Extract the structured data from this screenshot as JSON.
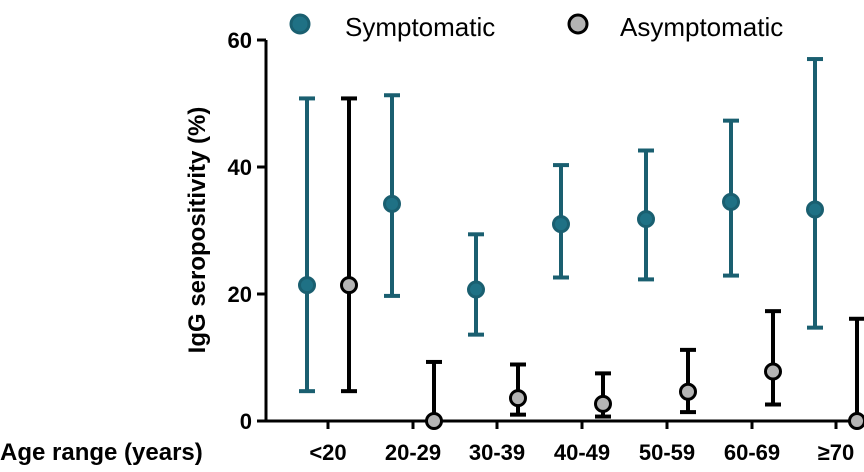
{
  "chart_data": {
    "type": "scatter",
    "xlabel": "Age range (years)",
    "ylabel": "IgG seropositivity (%)",
    "ylim": [
      0,
      60
    ],
    "yticks": [
      "0",
      "20",
      "40",
      "60"
    ],
    "categories": [
      "<20",
      "20-29",
      "30-39",
      "40-49",
      "50-59",
      "60-69",
      "≥70"
    ],
    "legend_position": "top",
    "series": [
      {
        "name": "Symptomatic",
        "color": "#1a5f70",
        "marker_fill": "#1f7185",
        "values": [
          21.4,
          34.2,
          20.7,
          31.0,
          31.8,
          34.5,
          33.3
        ],
        "ci_low": [
          4.7,
          19.7,
          13.6,
          22.6,
          22.3,
          22.9,
          14.7
        ],
        "ci_high": [
          50.8,
          51.3,
          29.4,
          40.3,
          42.6,
          47.3,
          57.0
        ]
      },
      {
        "name": "Asymptomatic",
        "color": "#000000",
        "marker_fill": "#b4b4b4",
        "values": [
          21.4,
          0.0,
          3.6,
          2.7,
          4.6,
          7.8,
          0.0
        ],
        "ci_low": [
          4.7,
          0.0,
          1.0,
          0.7,
          1.4,
          2.6,
          0.0
        ],
        "ci_high": [
          50.8,
          9.3,
          8.9,
          7.5,
          11.2,
          17.3,
          16.1
        ]
      }
    ]
  }
}
